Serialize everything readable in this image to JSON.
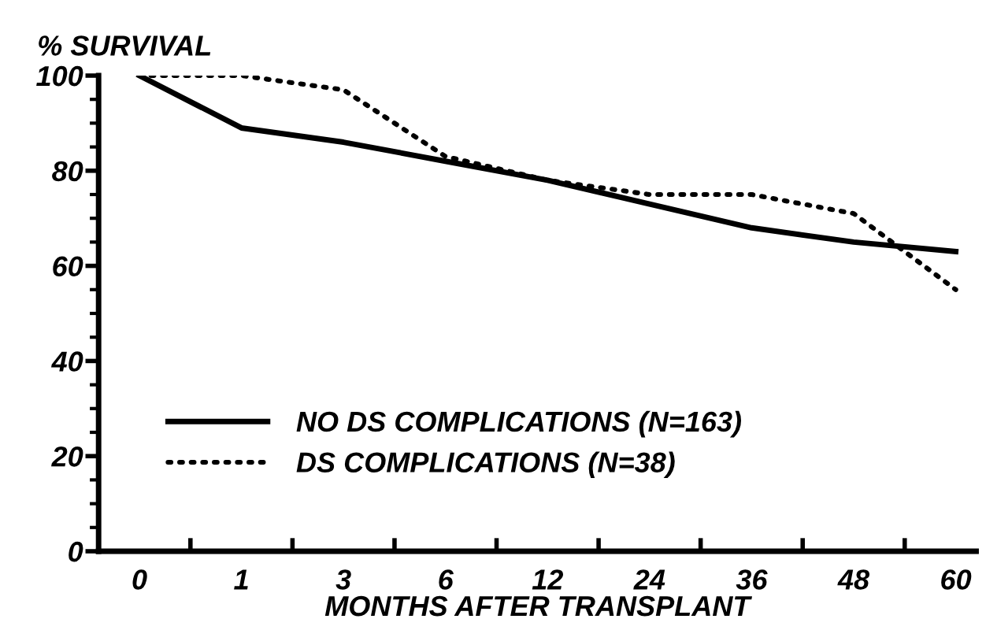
{
  "chart_data": {
    "type": "line",
    "ylabel": "% SURVIVAL",
    "xlabel": "MONTHS AFTER TRANSPLANT",
    "categories": [
      "0",
      "1",
      "3",
      "6",
      "12",
      "24",
      "36",
      "48",
      "60"
    ],
    "series": [
      {
        "name": "NO DS COMPLICATIONS (N=163)",
        "color": "#000000",
        "line_style": "solid",
        "values": [
          100,
          89,
          86,
          82,
          78,
          73,
          68,
          65,
          63
        ]
      },
      {
        "name": "DS COMPLICATIONS (N=38)",
        "color": "#000000",
        "line_style": "dotted",
        "values": [
          100,
          100,
          97,
          83,
          78,
          75,
          75,
          71,
          55
        ]
      }
    ],
    "ylim": [
      0,
      100
    ],
    "yticks": [
      0,
      20,
      40,
      60,
      80,
      100
    ],
    "grid": false,
    "legend": "bottom left",
    "marker": "none"
  }
}
